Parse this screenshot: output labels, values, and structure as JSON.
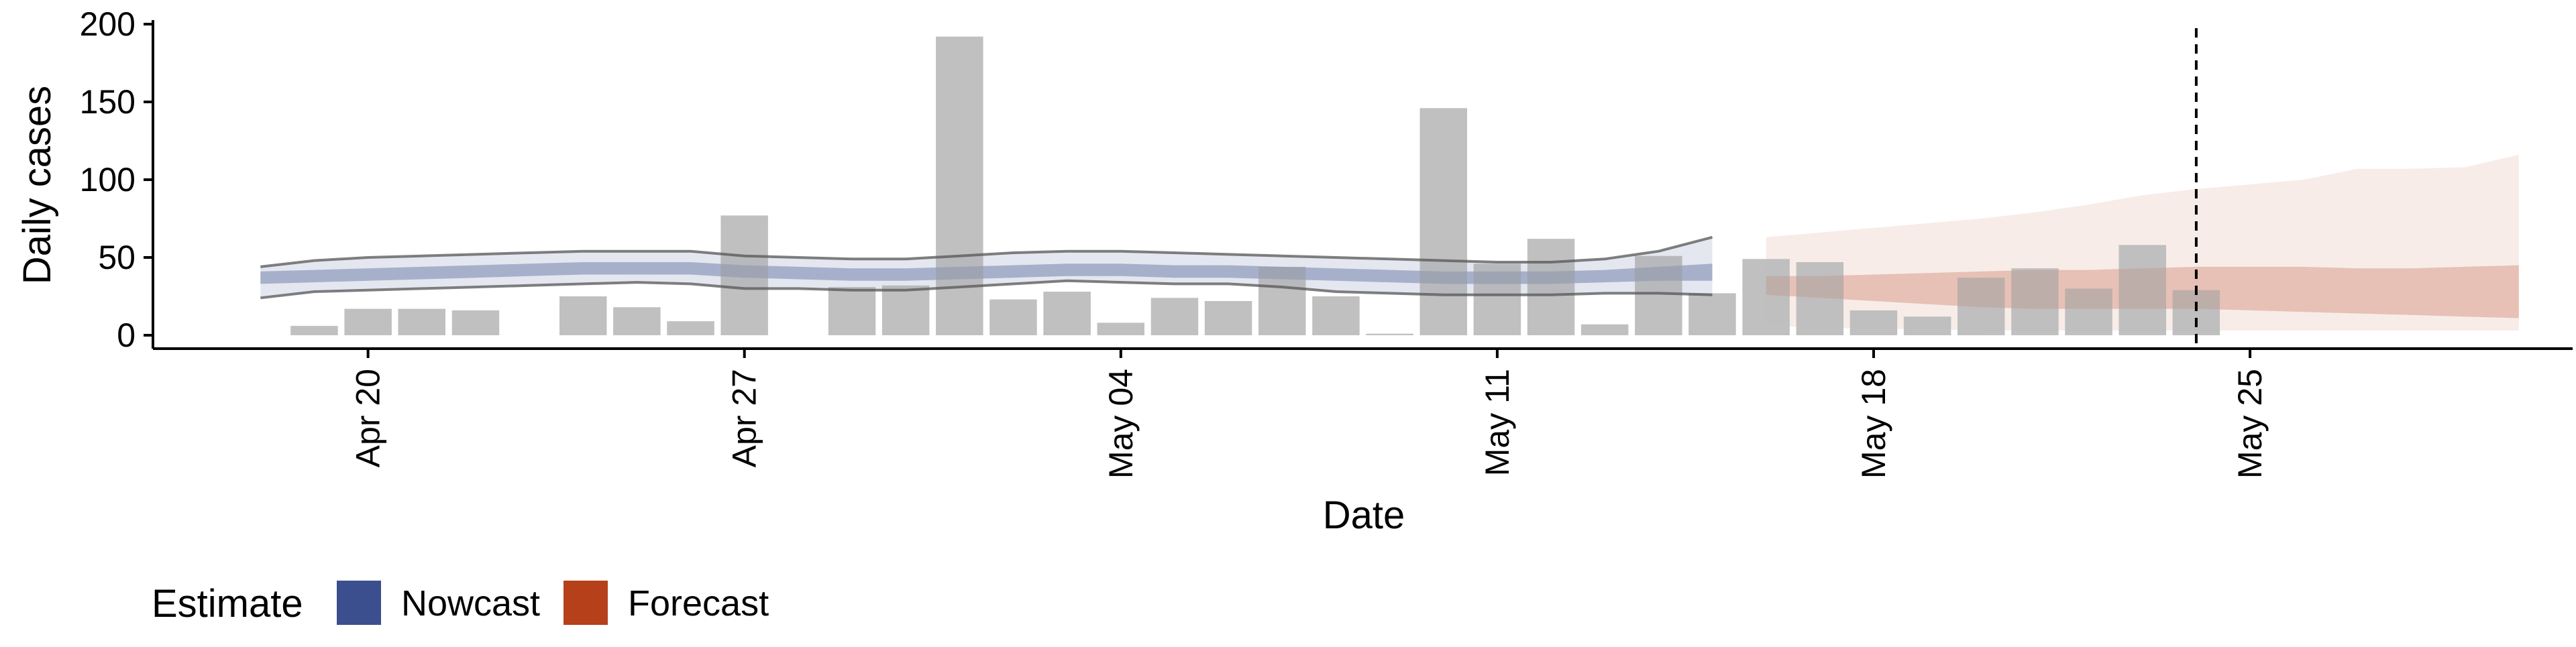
{
  "chart_data": {
    "type": "bar",
    "xlabel": "Date",
    "ylabel": "Daily cases",
    "ylim": [
      0,
      200
    ],
    "yticks": [
      0,
      50,
      100,
      150,
      200
    ],
    "x_tick_labels": [
      {
        "date": "2020-04-20",
        "label": "Apr 20"
      },
      {
        "date": "2020-04-27",
        "label": "Apr 27"
      },
      {
        "date": "2020-05-04",
        "label": "May 04"
      },
      {
        "date": "2020-05-11",
        "label": "May 11"
      },
      {
        "date": "2020-05-18",
        "label": "May 18"
      },
      {
        "date": "2020-05-25",
        "label": "May 25"
      }
    ],
    "xlim": [
      "2020-04-16",
      "2020-05-31"
    ],
    "grid": false,
    "legend_position": "bottom-left",
    "legend_title": "Estimate",
    "colors": {
      "bars": "#bdbdbd",
      "nowcast": "#3b4f8f",
      "forecast": "#b5401a",
      "outer_line": "#555555"
    },
    "bars": {
      "x": [
        "2020-04-19",
        "2020-04-20",
        "2020-04-21",
        "2020-04-22",
        "2020-04-23",
        "2020-04-24",
        "2020-04-25",
        "2020-04-26",
        "2020-04-27",
        "2020-04-28",
        "2020-04-29",
        "2020-04-30",
        "2020-05-01",
        "2020-05-02",
        "2020-05-03",
        "2020-05-04",
        "2020-05-05",
        "2020-05-06",
        "2020-05-07",
        "2020-05-08",
        "2020-05-09",
        "2020-05-10",
        "2020-05-11",
        "2020-05-12",
        "2020-05-13",
        "2020-05-14",
        "2020-05-15",
        "2020-05-16",
        "2020-05-17",
        "2020-05-18",
        "2020-05-19",
        "2020-05-20",
        "2020-05-21",
        "2020-05-22",
        "2020-05-23",
        "2020-05-24"
      ],
      "values": [
        6,
        17,
        17,
        16,
        0,
        25,
        18,
        9,
        77,
        0,
        31,
        32,
        192,
        23,
        28,
        8,
        24,
        22,
        44,
        25,
        1,
        146,
        46,
        62,
        7,
        51,
        27,
        49,
        47,
        16,
        12,
        37,
        43,
        30,
        58,
        29
      ]
    },
    "series": [
      {
        "name": "Nowcast",
        "x": [
          "2020-04-18",
          "2020-04-19",
          "2020-04-20",
          "2020-04-21",
          "2020-04-22",
          "2020-04-23",
          "2020-04-24",
          "2020-04-25",
          "2020-04-26",
          "2020-04-27",
          "2020-04-28",
          "2020-04-29",
          "2020-04-30",
          "2020-05-01",
          "2020-05-02",
          "2020-05-03",
          "2020-05-04",
          "2020-05-05",
          "2020-05-06",
          "2020-05-07",
          "2020-05-08",
          "2020-05-09",
          "2020-05-10",
          "2020-05-11",
          "2020-05-12",
          "2020-05-13",
          "2020-05-14",
          "2020-05-15"
        ],
        "median": [
          37,
          38,
          39,
          40,
          41,
          42,
          43,
          43,
          43,
          41,
          40,
          39,
          39,
          40,
          41,
          42,
          42,
          41,
          41,
          40,
          39,
          38,
          37,
          37,
          37,
          38,
          39,
          40
        ],
        "inner_lower": [
          33,
          34,
          35,
          36,
          37,
          38,
          39,
          39,
          39,
          37,
          36,
          35,
          35,
          36,
          37,
          38,
          38,
          37,
          37,
          36,
          35,
          34,
          33,
          33,
          33,
          34,
          35,
          35
        ],
        "inner_upper": [
          41,
          42,
          43,
          44,
          45,
          46,
          47,
          47,
          47,
          45,
          44,
          43,
          43,
          44,
          45,
          46,
          46,
          45,
          45,
          44,
          43,
          42,
          41,
          41,
          41,
          42,
          44,
          46
        ],
        "outer_lower": [
          24,
          28,
          29,
          30,
          31,
          32,
          33,
          34,
          33,
          30,
          30,
          29,
          29,
          31,
          33,
          35,
          34,
          33,
          33,
          31,
          28,
          27,
          26,
          26,
          26,
          27,
          27,
          26
        ],
        "outer_upper": [
          44,
          48,
          50,
          51,
          52,
          53,
          54,
          54,
          54,
          51,
          50,
          49,
          49,
          51,
          53,
          54,
          54,
          53,
          52,
          51,
          50,
          49,
          48,
          47,
          47,
          49,
          54,
          63
        ]
      },
      {
        "name": "Forecast",
        "x": [
          "2020-05-16",
          "2020-05-17",
          "2020-05-18",
          "2020-05-19",
          "2020-05-20",
          "2020-05-21",
          "2020-05-22",
          "2020-05-23",
          "2020-05-24",
          "2020-05-25",
          "2020-05-26",
          "2020-05-27",
          "2020-05-28",
          "2020-05-29",
          "2020-05-30"
        ],
        "inner_lower": [
          26,
          24,
          22,
          20,
          18,
          17,
          17,
          17,
          17,
          16,
          15,
          14,
          13,
          12,
          11
        ],
        "inner_upper": [
          38,
          38,
          39,
          40,
          41,
          42,
          42,
          43,
          44,
          44,
          44,
          43,
          43,
          44,
          45
        ],
        "outer_lower": [
          6,
          5,
          4,
          4,
          3,
          3,
          3,
          3,
          3,
          3,
          3,
          3,
          3,
          3,
          3
        ],
        "outer_upper": [
          63,
          66,
          69,
          72,
          75,
          79,
          84,
          90,
          94,
          97,
          100,
          107,
          107,
          108,
          116
        ]
      }
    ],
    "annotations": [
      {
        "type": "vline",
        "x": "2020-05-24",
        "style": "dashed"
      }
    ]
  }
}
